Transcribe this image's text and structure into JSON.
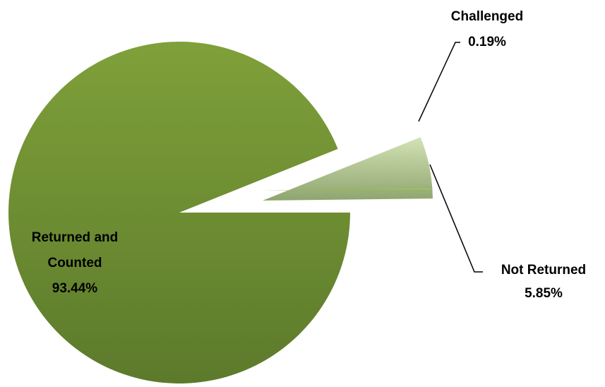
{
  "chart_data": {
    "type": "pie",
    "title": "",
    "slices": [
      {
        "label_lines": [
          "Returned and",
          "Counted"
        ],
        "percent_label": "93.44%",
        "value": 93.44,
        "color": "#77933c"
      },
      {
        "label_lines": [
          "Not Returned"
        ],
        "percent_label": "5.85%",
        "value": 5.85,
        "color": "#c3d69b"
      },
      {
        "label_lines": [
          "Challenged"
        ],
        "percent_label": "0.19%",
        "value": 0.19,
        "color": "#9bbb59"
      }
    ],
    "legend": "none",
    "exploded": true
  }
}
